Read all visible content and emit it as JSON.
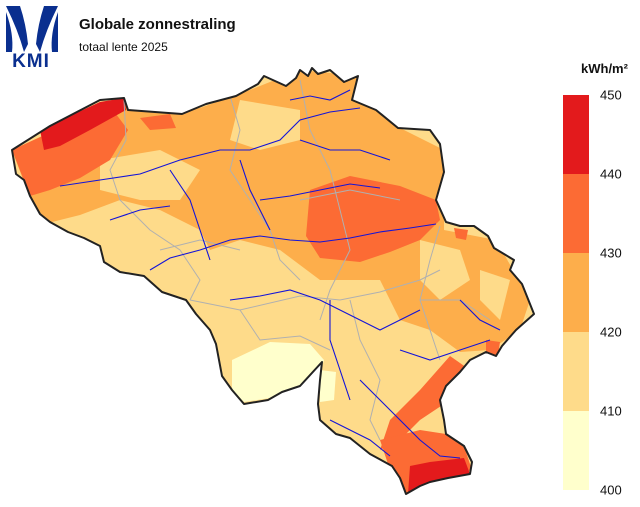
{
  "header": {
    "logo_text": "KMI",
    "title": "Globale zonnestraling",
    "subtitle": "totaal lente 2025"
  },
  "legend": {
    "unit": "kWh/m²",
    "ticks": [
      "450",
      "440",
      "430",
      "420",
      "410",
      "400"
    ],
    "classes": [
      {
        "from": 440,
        "to": 450,
        "color": "#e31a1c"
      },
      {
        "from": 430,
        "to": 440,
        "color": "#fc6b34"
      },
      {
        "from": 420,
        "to": 430,
        "color": "#fdae4b"
      },
      {
        "from": 410,
        "to": 420,
        "color": "#fedb8a"
      },
      {
        "from": 400,
        "to": 410,
        "color": "#ffffcc"
      }
    ]
  },
  "colors": {
    "river": "#1414d8",
    "province_border": "#b0b0b0",
    "country_border": "#222222",
    "logo_blue": "#0a2f8f"
  }
}
